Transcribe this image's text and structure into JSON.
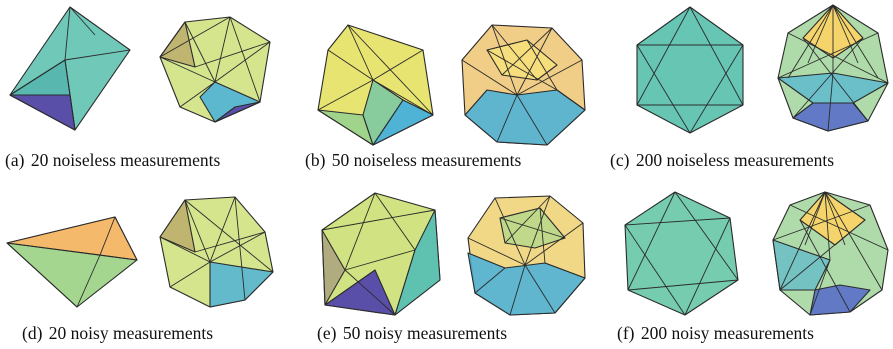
{
  "panels": [
    {
      "id": "a",
      "label": "(a)",
      "caption": "20 noiseless measurements"
    },
    {
      "id": "b",
      "label": "(b)",
      "caption": "50 noiseless measurements"
    },
    {
      "id": "c",
      "label": "(c)",
      "caption": "200 noiseless measurements"
    },
    {
      "id": "d",
      "label": "(d)",
      "caption": "20 noisy measurements"
    },
    {
      "id": "e",
      "label": "(e)",
      "caption": "50 noisy measurements"
    },
    {
      "id": "f",
      "label": "(f)",
      "caption": "200 noisy measurements"
    }
  ],
  "colors": {
    "teal": "#5fc2b0",
    "green": "#9fd48a",
    "yellow": "#e6e36a",
    "orange": "#f5b96b",
    "blue": "#4fb3d6",
    "purple": "#5a4fa8",
    "edge": "#2b2b2b"
  }
}
